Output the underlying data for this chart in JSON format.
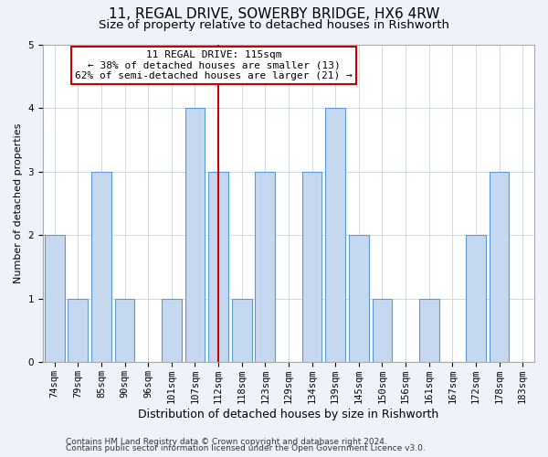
{
  "title_line1": "11, REGAL DRIVE, SOWERBY BRIDGE, HX6 4RW",
  "title_line2": "Size of property relative to detached houses in Rishworth",
  "xlabel": "Distribution of detached houses by size in Rishworth",
  "ylabel": "Number of detached properties",
  "categories": [
    "74sqm",
    "79sqm",
    "85sqm",
    "90sqm",
    "96sqm",
    "101sqm",
    "107sqm",
    "112sqm",
    "118sqm",
    "123sqm",
    "129sqm",
    "134sqm",
    "139sqm",
    "145sqm",
    "150sqm",
    "156sqm",
    "161sqm",
    "167sqm",
    "172sqm",
    "178sqm",
    "183sqm"
  ],
  "values": [
    2,
    1,
    3,
    1,
    0,
    1,
    4,
    3,
    1,
    3,
    0,
    3,
    4,
    2,
    1,
    0,
    1,
    0,
    2,
    3,
    0
  ],
  "bar_color": "#c5d8f0",
  "bar_edge_color": "#5b9bd5",
  "highlight_index": 7,
  "highlight_line_color": "#cc0000",
  "annotation_text": "11 REGAL DRIVE: 115sqm\n← 38% of detached houses are smaller (13)\n62% of semi-detached houses are larger (21) →",
  "annotation_box_color": "#ffffff",
  "annotation_box_edge_color": "#cc0000",
  "ylim": [
    0,
    5
  ],
  "yticks": [
    0,
    1,
    2,
    3,
    4,
    5
  ],
  "footer_line1": "Contains HM Land Registry data © Crown copyright and database right 2024.",
  "footer_line2": "Contains public sector information licensed under the Open Government Licence v3.0.",
  "background_color": "#eef2fa",
  "plot_background_color": "#ffffff",
  "title1_fontsize": 11,
  "title2_fontsize": 9.5,
  "xlabel_fontsize": 9,
  "ylabel_fontsize": 8,
  "tick_fontsize": 7.5,
  "annotation_fontsize": 8,
  "footer_fontsize": 6.5,
  "grid_color": "#d0d8e8"
}
